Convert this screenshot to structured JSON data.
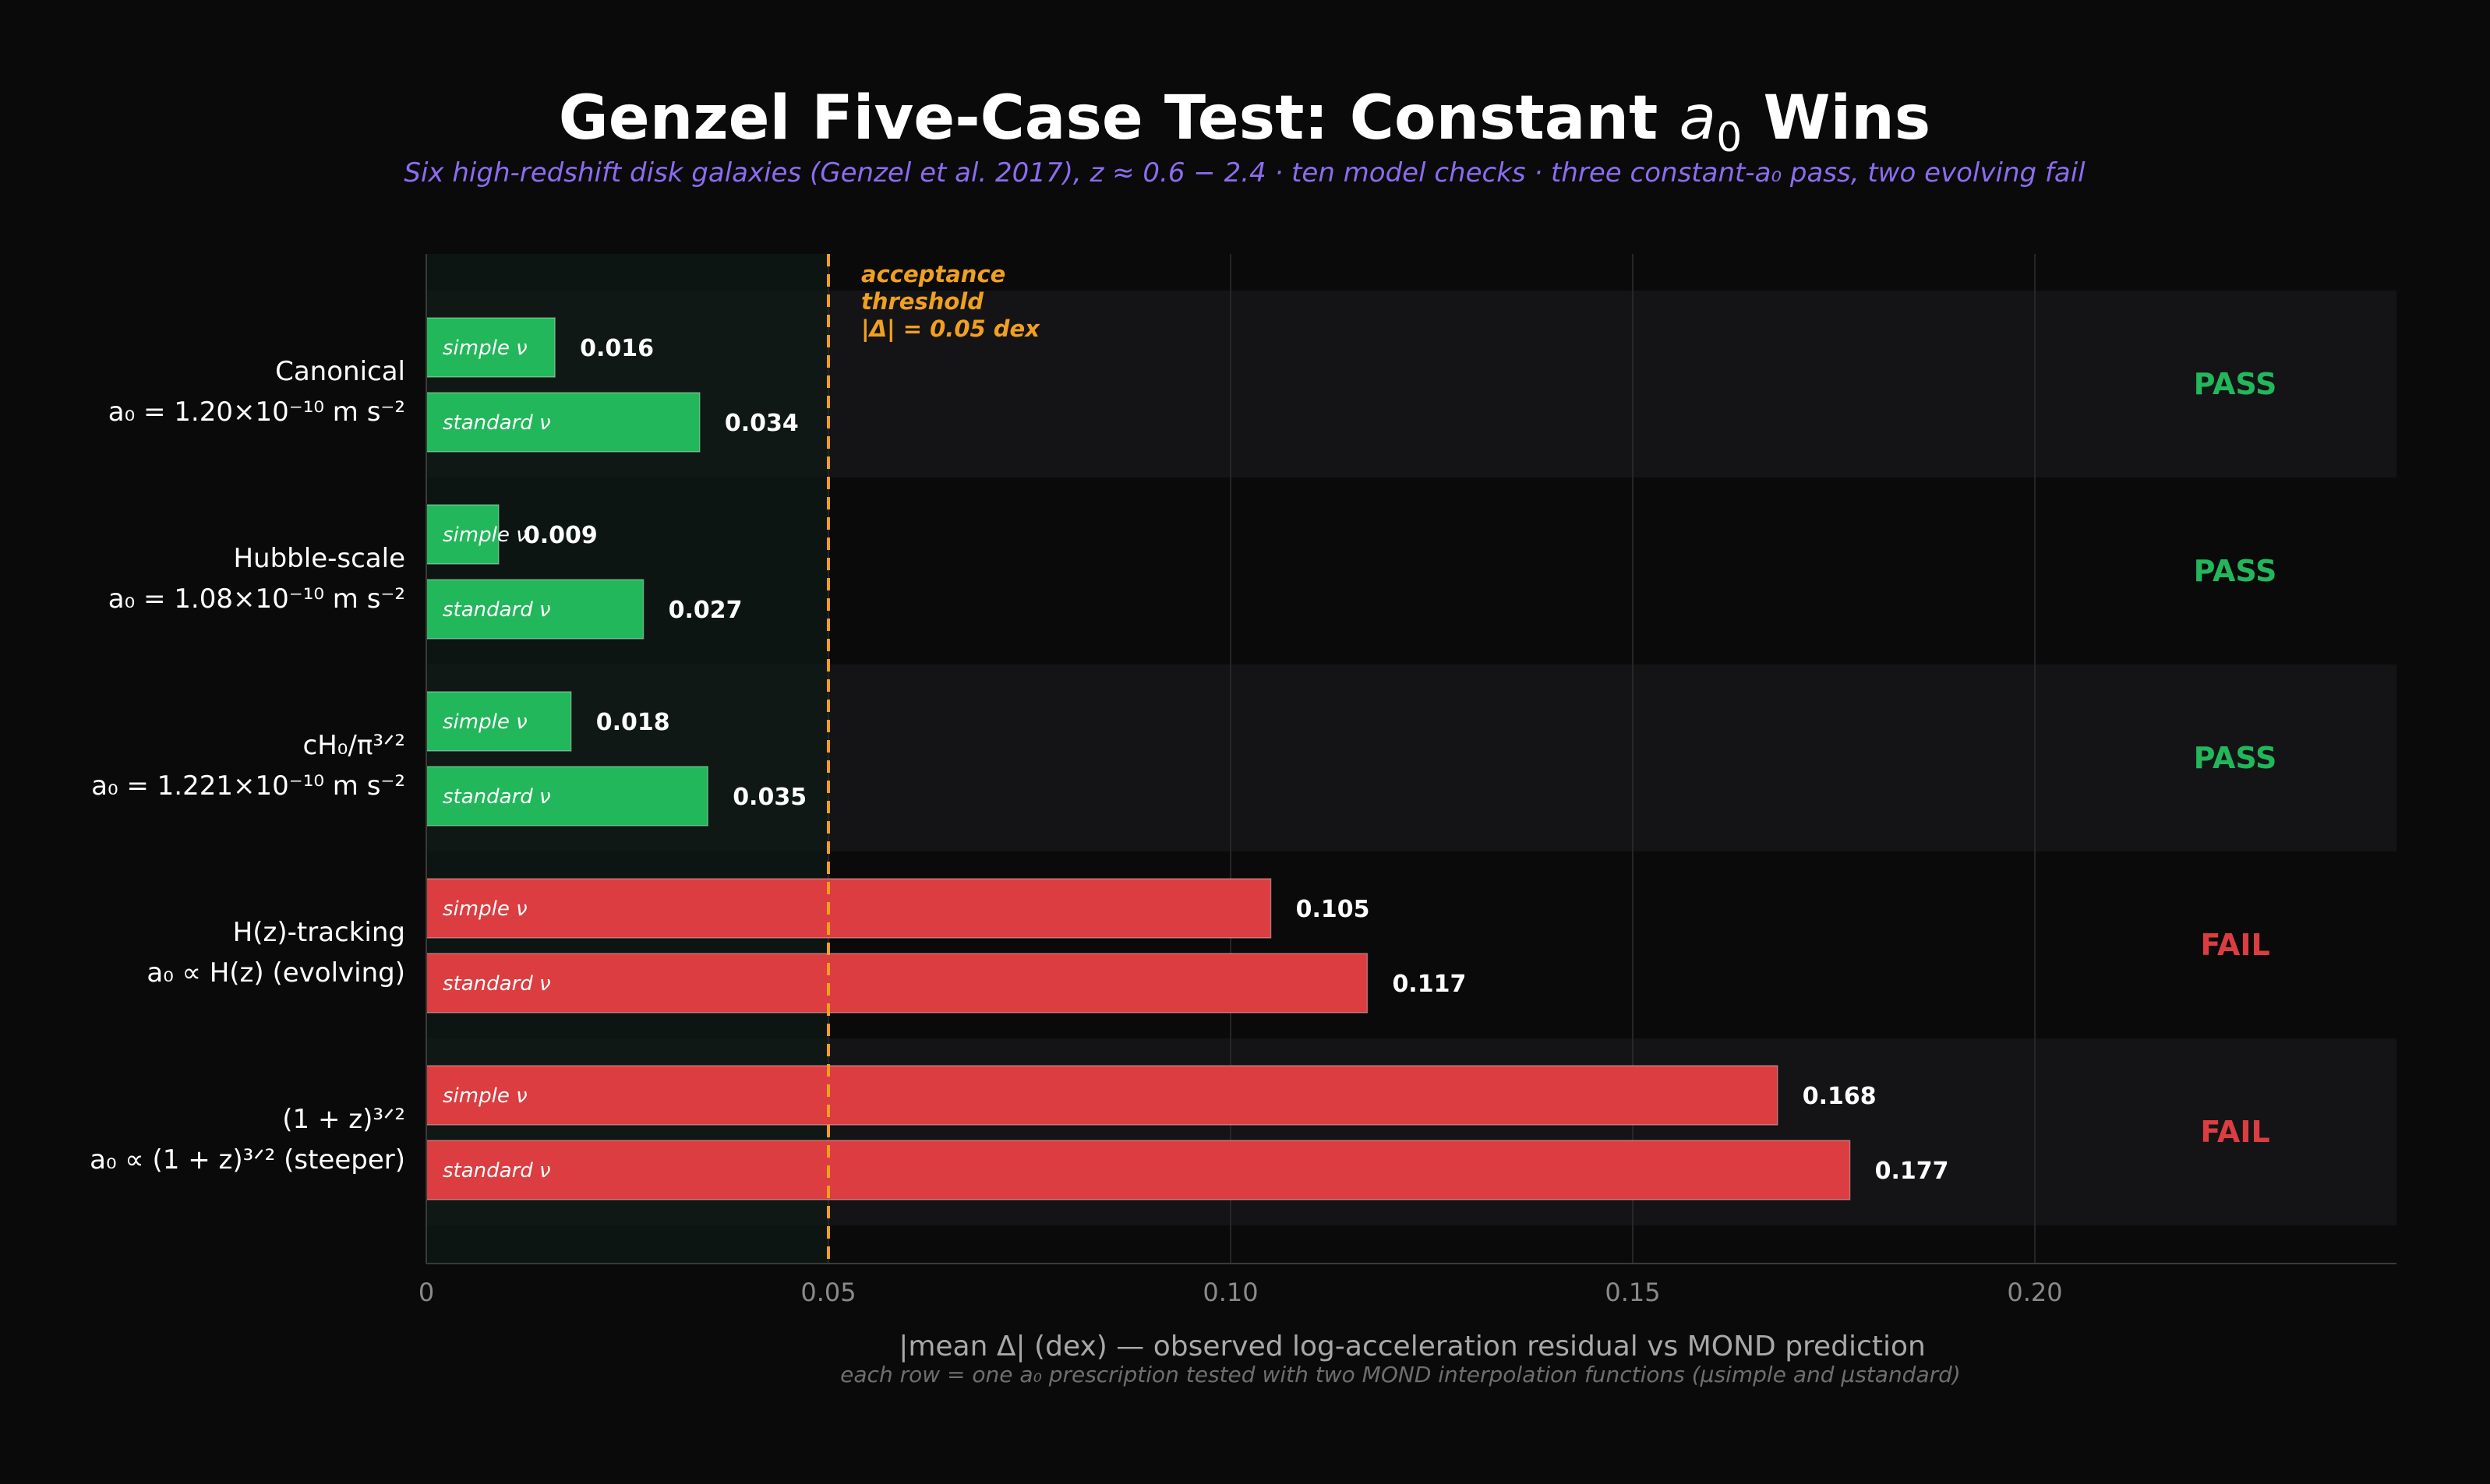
{
  "chart_data": {
    "type": "bar",
    "orientation": "horizontal",
    "title_main": "Genzel Five-Case Test: Constant ",
    "title_sym": "a",
    "title_sub": "0",
    "title_end": " Wins",
    "subtitle": "Six high-redshift disk galaxies (Genzel et al. 2017), z ≈ 0.6 − 2.4  ·  ten model checks  ·  three constant-a₀ pass, two evolving fail",
    "xlabel": "|mean Δ|  (dex)  — observed log-acceleration residual vs MOND prediction",
    "footnote": "each row = one a₀ prescription tested with two MOND interpolation functions (μsimple and μstandard)",
    "xlim": [
      0,
      0.245
    ],
    "xticks": [
      {
        "value": 0,
        "label": "0"
      },
      {
        "value": 0.05,
        "label": "0.05"
      },
      {
        "value": 0.1,
        "label": "0.10"
      },
      {
        "value": 0.15,
        "label": "0.15"
      },
      {
        "value": 0.2,
        "label": "0.20"
      }
    ],
    "threshold": {
      "value": 0.05,
      "label_lines": [
        "acceptance",
        "threshold",
        "|Δ| = 0.05 dex"
      ]
    },
    "bar_names": [
      "simple ν",
      "standard ν"
    ],
    "categories": [
      {
        "line1": "Canonical",
        "line2": "a₀ = 1.20×10⁻¹⁰ m s⁻²",
        "values": [
          0.016,
          0.034
        ],
        "labels": [
          "0.016",
          "0.034"
        ],
        "verdict": "PASS"
      },
      {
        "line1": "Hubble-scale",
        "line2": "a₀ = 1.08×10⁻¹⁰ m s⁻²",
        "values": [
          0.009,
          0.027
        ],
        "labels": [
          "0.009",
          "0.027"
        ],
        "verdict": "PASS"
      },
      {
        "line1": "cH₀/π³ᐟ²",
        "line2": "a₀ = 1.221×10⁻¹⁰ m s⁻²",
        "values": [
          0.018,
          0.035
        ],
        "labels": [
          "0.018",
          "0.035"
        ],
        "verdict": "PASS"
      },
      {
        "line1": "H(z)-tracking",
        "line2": "a₀ ∝ H(z)  (evolving)",
        "values": [
          0.105,
          0.117
        ],
        "labels": [
          "0.105",
          "0.117"
        ],
        "verdict": "FAIL"
      },
      {
        "line1": "(1 + z)³ᐟ²",
        "line2": "a₀ ∝ (1 + z)³ᐟ²  (steeper)",
        "values": [
          0.168,
          0.177
        ],
        "labels": [
          "0.168",
          "0.177"
        ],
        "verdict": "FAIL"
      }
    ],
    "colors": {
      "pass": "#22b75a",
      "fail": "#db3d40",
      "threshold": "#f0a020",
      "background": "#0a0a0a",
      "band": "#141416",
      "accept_zone": "#0e1a14"
    },
    "grid": true
  }
}
